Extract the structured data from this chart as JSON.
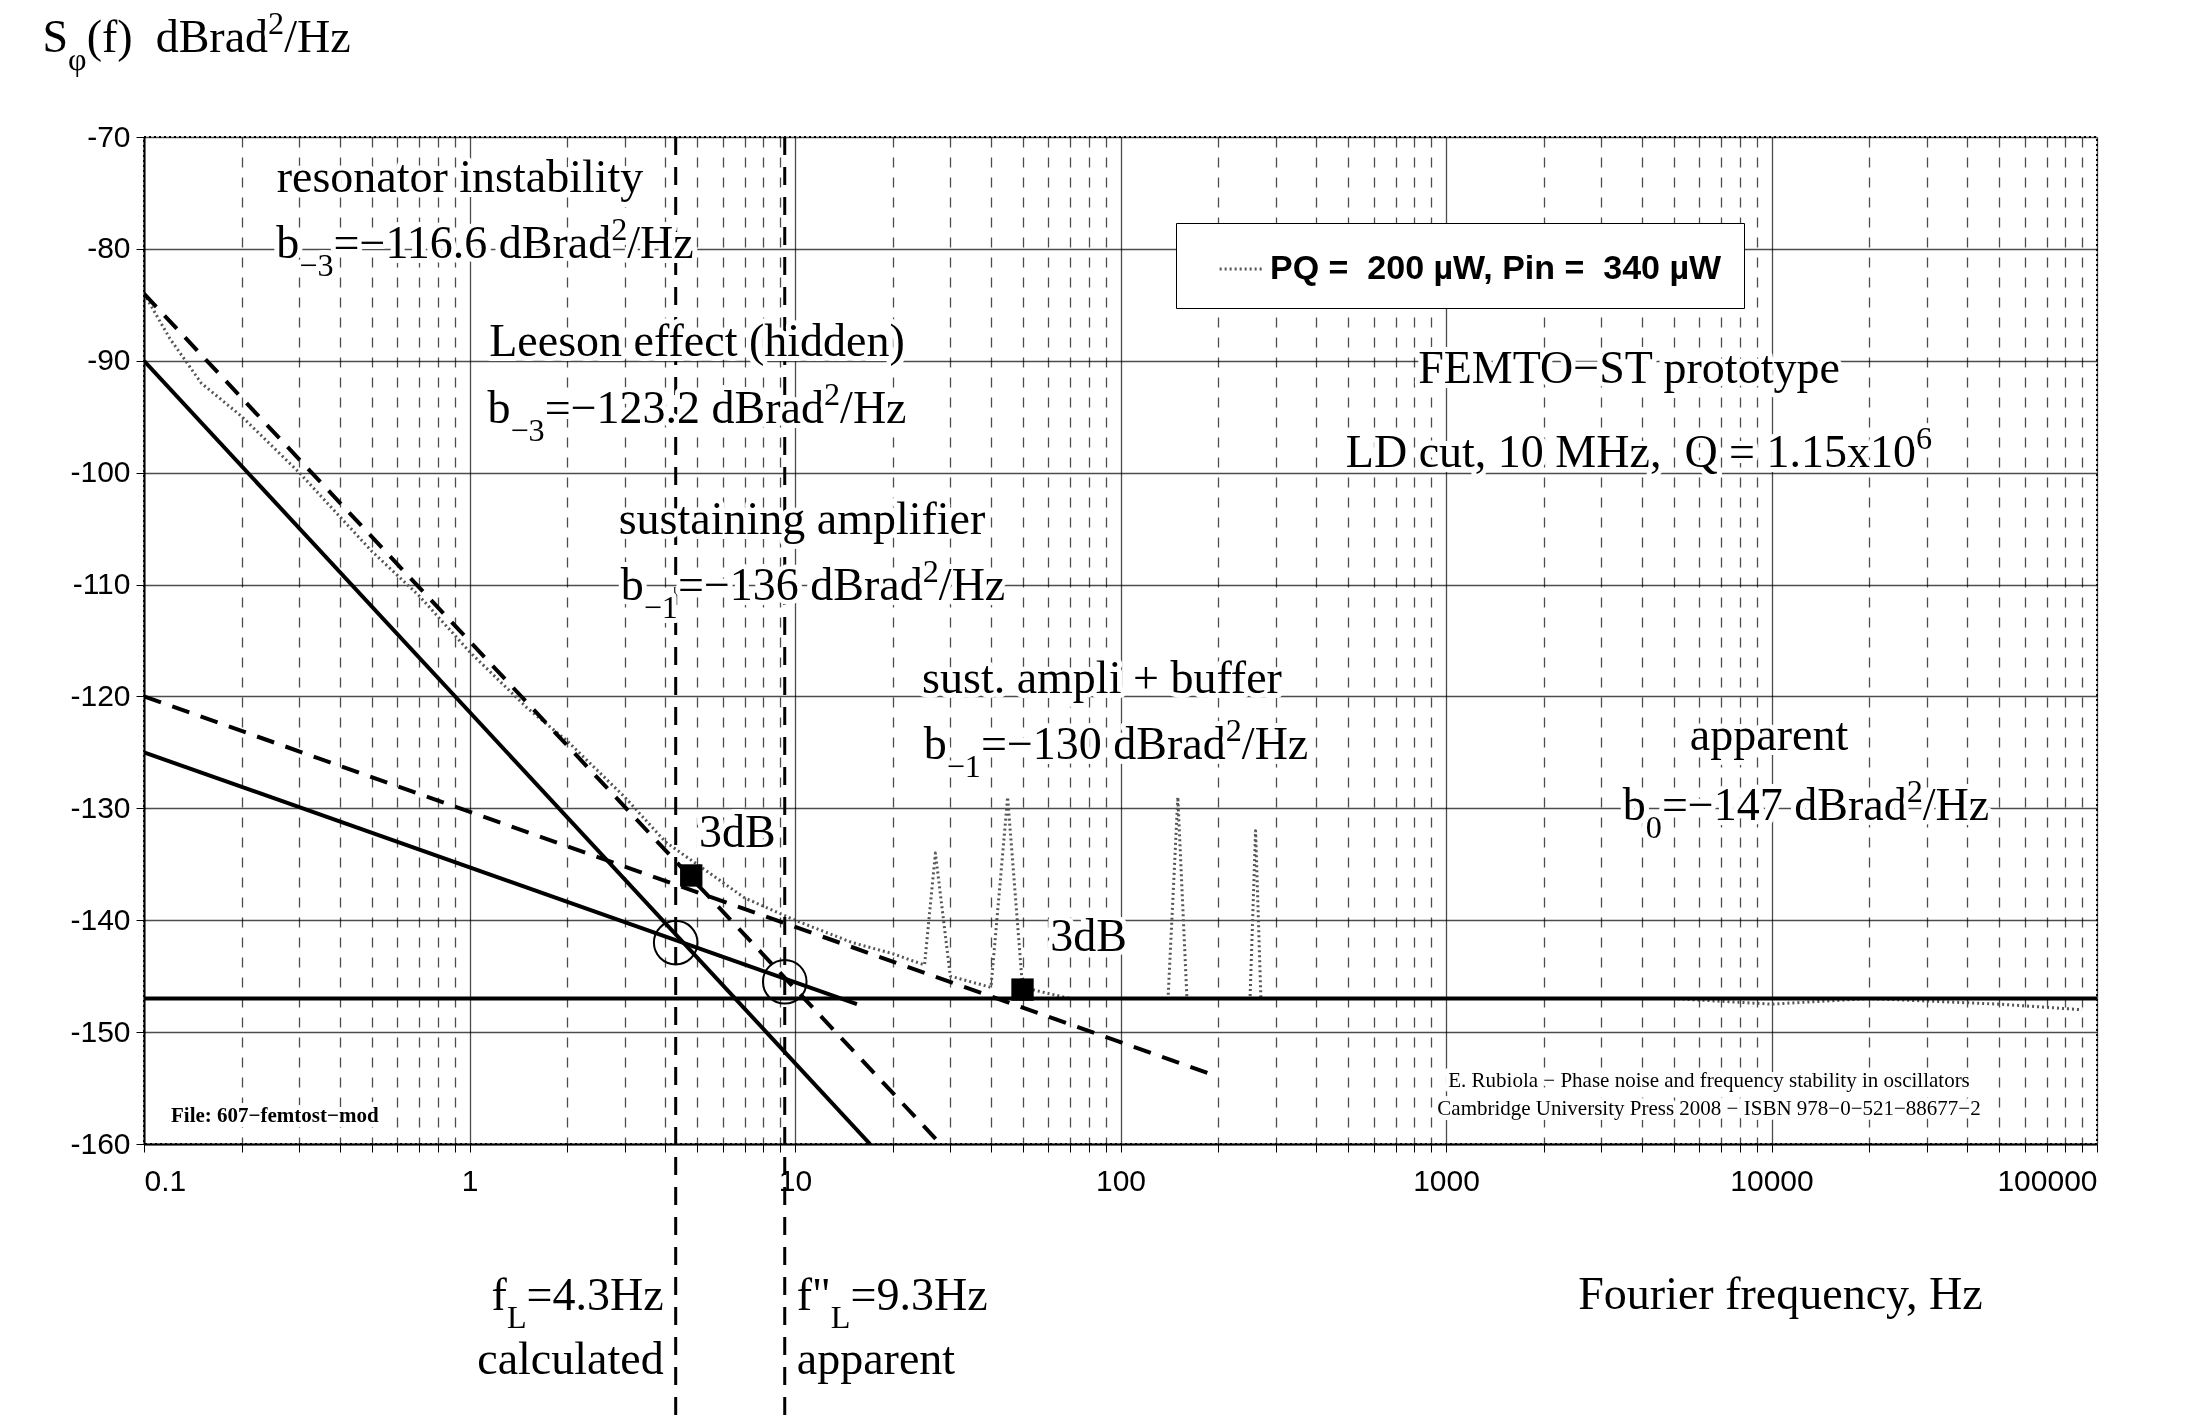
{
  "chart_data": {
    "type": "line",
    "xlabel": "Fourier frequency, Hz",
    "ylabel": "S$_{φ}$(f)  dBrad$^{2}$/Hz",
    "log": "x",
    "grid": true,
    "legend": "top right",
    "xlim": [
      0.1,
      100000
    ],
    "ylim": [
      -160,
      -70
    ],
    "xticks": [
      0.1,
      {
        "value": 0.2,
        "label": null
      },
      {
        "value": 0.3,
        "label": null
      },
      {
        "value": 0.4,
        "label": null
      },
      {
        "value": 0.5,
        "label": null
      },
      {
        "value": 0.6,
        "label": null
      },
      {
        "value": 0.7,
        "label": null
      },
      {
        "value": 0.8,
        "label": null
      },
      {
        "value": 0.9,
        "label": null
      },
      1,
      {
        "value": 2,
        "label": null
      },
      {
        "value": 3,
        "label": null
      },
      {
        "value": 4,
        "label": null
      },
      {
        "value": 5,
        "label": null
      },
      {
        "value": 6,
        "label": null
      },
      {
        "value": 7,
        "label": null
      },
      {
        "value": 8,
        "label": null
      },
      {
        "value": 9,
        "label": null
      },
      10,
      {
        "value": 20,
        "label": null
      },
      {
        "value": 30,
        "label": null
      },
      {
        "value": 40,
        "label": null
      },
      {
        "value": 50,
        "label": null
      },
      {
        "value": 60,
        "label": null
      },
      {
        "value": 70,
        "label": null
      },
      {
        "value": 80,
        "label": null
      },
      {
        "value": 90,
        "label": null
      },
      100,
      {
        "value": 200,
        "label": null
      },
      {
        "value": 300,
        "label": null
      },
      {
        "value": 400,
        "label": null
      },
      {
        "value": 500,
        "label": null
      },
      {
        "value": 600,
        "label": null
      },
      {
        "value": 700,
        "label": null
      },
      {
        "value": 800,
        "label": null
      },
      {
        "value": 900,
        "label": null
      },
      1000,
      {
        "value": 2000,
        "label": null
      },
      {
        "value": 3000,
        "label": null
      },
      {
        "value": 4000,
        "label": null
      },
      {
        "value": 5000,
        "label": null
      },
      {
        "value": 6000,
        "label": null
      },
      {
        "value": 7000,
        "label": null
      },
      {
        "value": 8000,
        "label": null
      },
      {
        "value": 9000,
        "label": null
      },
      10000,
      {
        "value": 20000,
        "label": null
      },
      {
        "value": 30000,
        "label": null
      },
      {
        "value": 40000,
        "label": null
      },
      {
        "value": 50000,
        "label": null
      },
      {
        "value": 60000,
        "label": null
      },
      {
        "value": 70000,
        "label": null
      },
      {
        "value": 80000,
        "label": null
      },
      {
        "value": 90000,
        "label": null
      },
      100000
    ],
    "yticks": [
      -160,
      -150,
      -140,
      -130,
      -120,
      -110,
      -100,
      -90,
      -80,
      -70
    ],
    "series": [
      {
        "name": "PQ =  200 µW, Pin =  340 µW",
        "type": "line",
        "color": "#555555",
        "line_style": "dotted",
        "x": [
          0.1,
          0.12,
          0.15,
          0.2,
          0.3,
          0.5,
          0.7,
          1,
          1.5,
          2,
          3,
          4,
          5,
          7,
          10,
          15,
          20,
          25,
          27,
          30,
          40,
          45,
          50,
          70,
          100,
          140,
          150,
          160,
          250,
          260,
          270,
          500,
          1000,
          2000,
          5000,
          10000,
          20000,
          50000,
          90000
        ],
        "values": [
          -84,
          -88,
          -92,
          -95,
          -100,
          -107,
          -111,
          -116,
          -121,
          -124,
          -129,
          -133,
          -135,
          -138,
          -140,
          -142,
          -143,
          -144,
          -134,
          -145,
          -146,
          -129,
          -146,
          -147,
          -147,
          -147,
          -129,
          -147,
          -147,
          -132,
          -147,
          -147,
          -147,
          -147,
          -147,
          -147.5,
          -147,
          -147.5,
          -148
        ]
      },
      {
        "type": "line",
        "color": "#000000",
        "line_style": "solid",
        "x": [
          0.1,
          17
        ],
        "values": [
          -90,
          -160
        ]
      },
      {
        "type": "line",
        "color": "#000000",
        "line_style": "dashed",
        "x": [
          0.1,
          28
        ],
        "values": [
          -84,
          -160
        ]
      },
      {
        "type": "line",
        "color": "#000000",
        "line_style": "solid",
        "x": [
          0.1,
          15.5
        ],
        "values": [
          -125,
          -147.5
        ]
      },
      {
        "type": "line",
        "color": "#000000",
        "line_style": "dashed",
        "x": [
          0.1,
          200
        ],
        "values": [
          -120,
          -154
        ]
      },
      {
        "type": "line",
        "color": "#000000",
        "line_style": "solid",
        "x": [
          0.1,
          100000
        ],
        "values": [
          -147,
          -147
        ]
      },
      {
        "type": "scatter",
        "color": "#000000",
        "marker": "circle",
        "x": [
          4.3,
          9.3
        ],
        "values": [
          -142,
          -145.5
        ]
      },
      {
        "type": "scatter",
        "color": "#000000",
        "marker": "square",
        "x": [
          4.8,
          50
        ],
        "values": [
          -136,
          -146.2
        ]
      }
    ],
    "ref_lines": [
      {
        "axis": "x",
        "value": 4.3,
        "label": "f$_{L}$=4.3Hz\ncalculated",
        "line_style": "dashed"
      },
      {
        "axis": "x",
        "value": 9.3,
        "label": "f\"$_{L}$=9.3Hz\napparent",
        "line_style": "dashed"
      }
    ],
    "annotations": [
      "resonator instability",
      "b$_{−3}$=−116.6 dBrad$^{2}$/Hz",
      "Leeson effect (hidden)",
      "b$_{−3}$=−123.2 dBrad$^{2}$/Hz",
      "sustaining amplifier",
      "b$_{−1}$=−136 dBrad$^{2}$/Hz",
      "sust. ampli + buffer",
      "b$_{−1}$=−130 dBrad$^{2}$/Hz",
      "apparent",
      "b$_{0}$=−147 dBrad$^{2}$/Hz",
      "FEMTO−ST prototype",
      "LD cut, 10 MHz,  Q = 1.15x10$^{6}$",
      {
        "text": "3dB",
        "x": 4.8,
        "y": -136
      },
      {
        "text": "3dB",
        "x": 50,
        "y": -146.2
      },
      "File: 607−femtost−mod",
      "E. Rubiola − Phase noise and frequency stability in oscillators",
      "Cambridge University Press 2008 − ISBN 978−0−521−88677−2"
    ]
  }
}
